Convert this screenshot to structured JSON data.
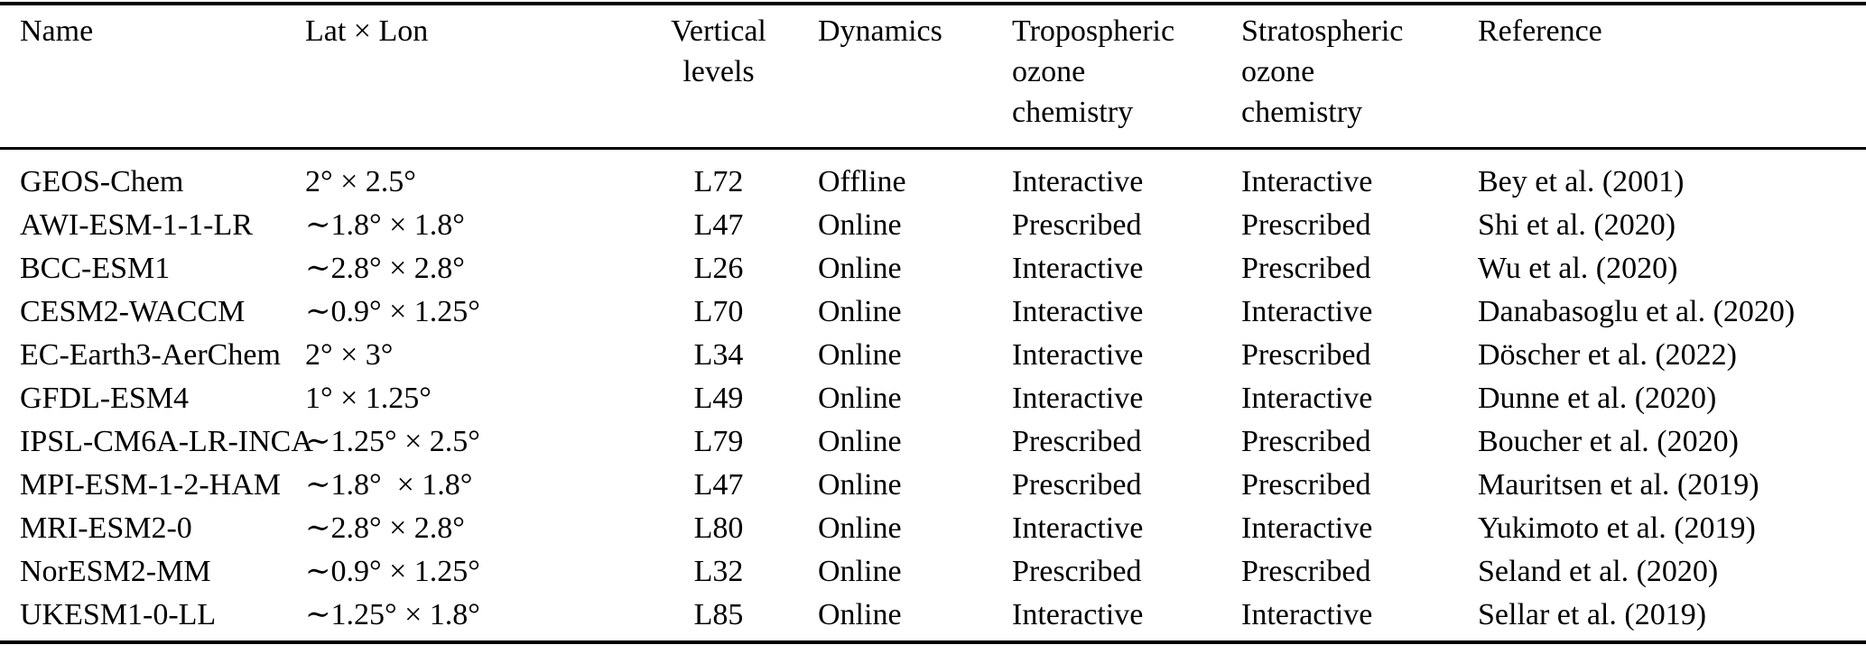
{
  "colors": {
    "background": "#ffffff",
    "text": "#000000",
    "rule": "#000000"
  },
  "table": {
    "headers": [
      {
        "id": "name",
        "lines": [
          "Name"
        ]
      },
      {
        "id": "lat_lon",
        "lines": [
          "Lat × Lon"
        ]
      },
      {
        "id": "vertical_levels",
        "lines": [
          "Vertical",
          "levels"
        ]
      },
      {
        "id": "dynamics",
        "lines": [
          "Dynamics"
        ]
      },
      {
        "id": "tropospheric_ozone_chemistry",
        "lines": [
          "Tropospheric",
          "ozone",
          "chemistry"
        ]
      },
      {
        "id": "stratospheric_ozone_chemistry",
        "lines": [
          "Stratospheric",
          "ozone",
          "chemistry"
        ]
      },
      {
        "id": "reference",
        "lines": [
          "Reference"
        ]
      }
    ],
    "rows": [
      {
        "name": "GEOS-Chem",
        "lat_lon": "2° × 2.5°",
        "vertical_levels": "L72",
        "dynamics": "Offline",
        "tropospheric": "Interactive",
        "stratospheric": "Interactive",
        "reference": "Bey et al. (2001)"
      },
      {
        "name": "AWI-ESM-1-1-LR",
        "lat_lon": "∼1.8° × 1.8°",
        "vertical_levels": "L47",
        "dynamics": "Online",
        "tropospheric": "Prescribed",
        "stratospheric": "Prescribed",
        "reference": "Shi et al. (2020)"
      },
      {
        "name": "BCC-ESM1",
        "lat_lon": "∼2.8° × 2.8°",
        "vertical_levels": "L26",
        "dynamics": "Online",
        "tropospheric": "Interactive",
        "stratospheric": "Prescribed",
        "reference": "Wu et al. (2020)"
      },
      {
        "name": "CESM2-WACCM",
        "lat_lon": "∼0.9° × 1.25°",
        "vertical_levels": "L70",
        "dynamics": "Online",
        "tropospheric": "Interactive",
        "stratospheric": "Interactive",
        "reference": "Danabasoglu et al. (2020)"
      },
      {
        "name": "EC-Earth3-AerChem",
        "lat_lon": "2° × 3°",
        "vertical_levels": "L34",
        "dynamics": "Online",
        "tropospheric": "Interactive",
        "stratospheric": "Prescribed",
        "reference": "Döscher et al. (2022)"
      },
      {
        "name": "GFDL-ESM4",
        "lat_lon": "1° × 1.25°",
        "vertical_levels": "L49",
        "dynamics": "Online",
        "tropospheric": "Interactive",
        "stratospheric": "Interactive",
        "reference": "Dunne et al. (2020)"
      },
      {
        "name": "IPSL-CM6A-LR-INCA",
        "lat_lon": "∼1.25° × 2.5°",
        "vertical_levels": "L79",
        "dynamics": "Online",
        "tropospheric": "Prescribed",
        "stratospheric": "Prescribed",
        "reference": "Boucher et al. (2020)"
      },
      {
        "name": "MPI-ESM-1-2-HAM",
        "lat_lon": "∼1.8°  × 1.8°",
        "vertical_levels": "L47",
        "dynamics": "Online",
        "tropospheric": "Prescribed",
        "stratospheric": "Prescribed",
        "reference": "Mauritsen et al. (2019)"
      },
      {
        "name": "MRI-ESM2-0",
        "lat_lon": "∼2.8° × 2.8°",
        "vertical_levels": "L80",
        "dynamics": "Online",
        "tropospheric": "Interactive",
        "stratospheric": "Interactive",
        "reference": "Yukimoto et al. (2019)"
      },
      {
        "name": "NorESM2-MM",
        "lat_lon": "∼0.9° × 1.25°",
        "vertical_levels": "L32",
        "dynamics": "Online",
        "tropospheric": "Prescribed",
        "stratospheric": "Prescribed",
        "reference": "Seland et al. (2020)"
      },
      {
        "name": "UKESM1-0-LL",
        "lat_lon": "∼1.25° × 1.8°",
        "vertical_levels": "L85",
        "dynamics": "Online",
        "tropospheric": "Interactive",
        "stratospheric": "Interactive",
        "reference": "Sellar et al. (2019)"
      }
    ]
  }
}
